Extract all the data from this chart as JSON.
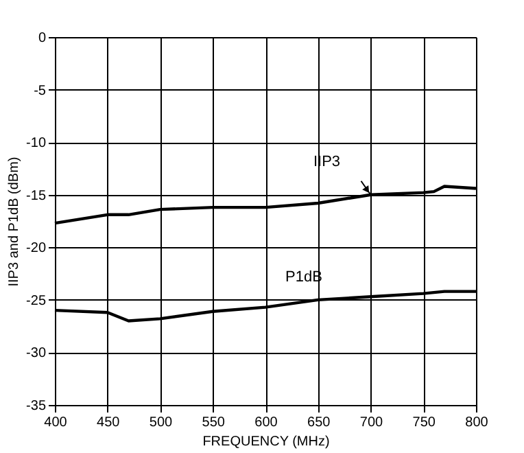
{
  "chart_data": {
    "type": "line",
    "xlabel": "FREQUENCY (MHz)",
    "ylabel": "IIP3 and P1dB (dBm)",
    "xlim": [
      400,
      800
    ],
    "xticks": [
      400,
      450,
      500,
      550,
      600,
      650,
      700,
      750,
      800
    ],
    "ylim": [
      -35,
      0
    ],
    "yticks": [
      -35,
      -30,
      -25,
      -20,
      -15,
      -10,
      -5,
      0
    ],
    "grid": true,
    "legend": false,
    "line_style": "solid",
    "marker": "none",
    "series": [
      {
        "name": "IIP3",
        "color": "#000000",
        "x": [
          400,
          450,
          470,
          500,
          550,
          600,
          650,
          700,
          750,
          760,
          770,
          800
        ],
        "values": [
          -17.7,
          -16.9,
          -16.9,
          -16.4,
          -16.2,
          -16.2,
          -15.8,
          -15.0,
          -14.8,
          -14.7,
          -14.2,
          -14.4
        ]
      },
      {
        "name": "P1dB",
        "color": "#000000",
        "x": [
          400,
          450,
          470,
          500,
          550,
          600,
          650,
          700,
          750,
          770,
          800
        ],
        "values": [
          -26.0,
          -26.2,
          -27.0,
          -26.8,
          -26.1,
          -25.7,
          -25.0,
          -24.7,
          -24.4,
          -24.2,
          -24.2
        ]
      }
    ]
  }
}
